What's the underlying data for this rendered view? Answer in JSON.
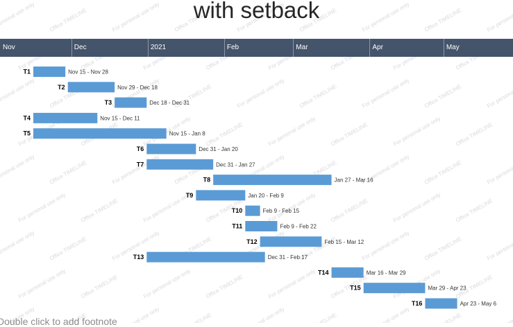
{
  "chart_data": {
    "type": "gantt",
    "title": "with setback",
    "year_marker": "2021",
    "timeline_months": [
      "Nov",
      "Dec",
      "2021",
      "Feb",
      "Mar",
      "Apr",
      "May"
    ],
    "tasks": [
      {
        "name": "T1",
        "start": "2020-11-15",
        "end": "2020-11-28",
        "label": "Nov 15 - Nov 28"
      },
      {
        "name": "T2",
        "start": "2020-11-29",
        "end": "2020-12-18",
        "label": "Nov 29 - Dec 18"
      },
      {
        "name": "T3",
        "start": "2020-12-18",
        "end": "2020-12-31",
        "label": "Dec 18 - Dec 31"
      },
      {
        "name": "T4",
        "start": "2020-11-15",
        "end": "2020-12-11",
        "label": "Nov 15 - Dec 11"
      },
      {
        "name": "T5",
        "start": "2020-11-15",
        "end": "2021-01-08",
        "label": "Nov 15 - Jan 8"
      },
      {
        "name": "T6",
        "start": "2020-12-31",
        "end": "2021-01-20",
        "label": "Dec 31 - Jan 20"
      },
      {
        "name": "T7",
        "start": "2020-12-31",
        "end": "2021-01-27",
        "label": "Dec 31 - Jan 27"
      },
      {
        "name": "T8",
        "start": "2021-01-27",
        "end": "2021-03-16",
        "label": "Jan 27 - Mar 16"
      },
      {
        "name": "T9",
        "start": "2021-01-20",
        "end": "2021-02-09",
        "label": "Jan 20 - Feb 9"
      },
      {
        "name": "T10",
        "start": "2021-02-09",
        "end": "2021-02-15",
        "label": "Feb 9 - Feb 15"
      },
      {
        "name": "T11",
        "start": "2021-02-09",
        "end": "2021-02-22",
        "label": "Feb 9 - Feb 22"
      },
      {
        "name": "T12",
        "start": "2021-02-15",
        "end": "2021-03-12",
        "label": "Feb 15 - Mar 12"
      },
      {
        "name": "T13",
        "start": "2020-12-31",
        "end": "2021-02-17",
        "label": "Dec 31 - Feb 17"
      },
      {
        "name": "T14",
        "start": "2021-03-16",
        "end": "2021-03-29",
        "label": "Mar 16 - Mar 29"
      },
      {
        "name": "T15",
        "start": "2021-03-29",
        "end": "2021-04-23",
        "label": "Mar 29 - Apr 23"
      },
      {
        "name": "T16",
        "start": "2021-04-23",
        "end": "2021-05-06",
        "label": "Apr 23 - May 6"
      }
    ]
  },
  "watermarks": [
    "For personal use only",
    "Office TIMELINE"
  ],
  "footnote": "Double click to add footnote",
  "colors": {
    "bar": "#5b9bd5",
    "timeline_band": "#44546a",
    "task_label": "#000000",
    "date_label": "#333333",
    "title": "#262626"
  }
}
